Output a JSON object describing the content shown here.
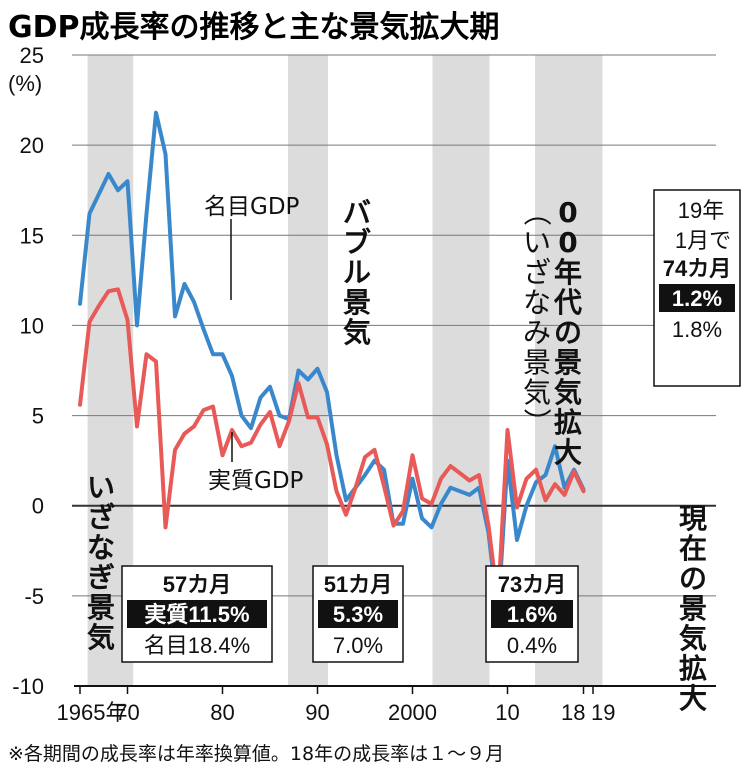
{
  "chart_data": {
    "type": "line",
    "title": "GDP成長率の推移と主な景気拡大期",
    "ylabel": "(%)",
    "ylim": [
      -10,
      25
    ],
    "yticks": [
      -10,
      -5,
      0,
      5,
      10,
      15,
      20,
      25
    ],
    "xlim": [
      1964.5,
      2020
    ],
    "xtick_labels": [
      {
        "x": 1965,
        "label": "1965年"
      },
      {
        "x": 1970,
        "label": "70"
      },
      {
        "x": 1980,
        "label": "80"
      },
      {
        "x": 1990,
        "label": "90"
      },
      {
        "x": 2000,
        "label": "2000"
      },
      {
        "x": 2010,
        "label": "10"
      },
      {
        "x": 2018,
        "label": "18"
      },
      {
        "x": 2019,
        "label": "19"
      }
    ],
    "grid": true,
    "x": [
      1965,
      1966,
      1967,
      1968,
      1969,
      1970,
      1971,
      1972,
      1973,
      1974,
      1975,
      1976,
      1977,
      1978,
      1979,
      1980,
      1981,
      1982,
      1983,
      1984,
      1985,
      1986,
      1987,
      1988,
      1989,
      1990,
      1991,
      1992,
      1993,
      1994,
      1995,
      1996,
      1997,
      1998,
      1999,
      2000,
      2001,
      2002,
      2003,
      2004,
      2005,
      2006,
      2007,
      2008,
      2009,
      2010,
      2011,
      2012,
      2013,
      2014,
      2015,
      2016,
      2017,
      2018
    ],
    "series": [
      {
        "name": "名目GDP",
        "color": "#3a88cc",
        "values": [
          11.2,
          16.2,
          17.3,
          18.4,
          17.5,
          18.0,
          10.0,
          16.2,
          21.8,
          19.5,
          10.5,
          12.3,
          11.3,
          9.8,
          8.4,
          8.4,
          7.2,
          5.0,
          4.3,
          6.0,
          6.6,
          5.0,
          4.8,
          7.5,
          7.0,
          7.6,
          6.3,
          2.8,
          0.3,
          1.0,
          1.7,
          2.5,
          2.0,
          -1.0,
          -1.0,
          1.5,
          -0.7,
          -1.2,
          0.1,
          1.0,
          0.8,
          0.6,
          1.0,
          -1.5,
          -6.1,
          2.5,
          -1.9,
          0.0,
          1.3,
          1.7,
          3.3,
          1.0,
          2.0,
          0.9
        ]
      },
      {
        "name": "実質GDP",
        "color": "#e85a58",
        "values": [
          5.6,
          10.2,
          11.1,
          11.9,
          12.0,
          10.3,
          4.4,
          8.4,
          8.0,
          -1.2,
          3.1,
          4.0,
          4.4,
          5.3,
          5.5,
          2.8,
          4.2,
          3.3,
          3.5,
          4.5,
          5.2,
          3.3,
          4.7,
          6.8,
          4.9,
          4.9,
          3.4,
          0.8,
          -0.5,
          1.0,
          2.7,
          3.1,
          1.1,
          -1.1,
          -0.3,
          2.8,
          0.4,
          0.1,
          1.5,
          2.2,
          1.8,
          1.4,
          1.7,
          -1.1,
          -5.4,
          4.2,
          -0.1,
          1.5,
          2.0,
          0.3,
          1.2,
          0.6,
          1.9,
          0.8
        ]
      }
    ],
    "shaded_periods": [
      {
        "from": 1965.8,
        "to": 1970.6,
        "label": "いざなぎ景気",
        "months": "57カ月",
        "real": "実質11.5%",
        "nominal": "名目18.4%"
      },
      {
        "from": 1986.9,
        "to": 1991.1,
        "label": "バブル景気",
        "months": "51カ月",
        "real": "5.3%",
        "nominal": "7.0%"
      },
      {
        "from": 2002.1,
        "to": 2008.1,
        "label": "00年代の景気拡大（いざなみ景気）",
        "months": "73カ月",
        "real": "1.6%",
        "nominal": "0.4%"
      },
      {
        "from": 2012.9,
        "to": 2020,
        "label": "現在の景気拡大",
        "months": "74カ月",
        "real": "1.2%",
        "nominal": "1.8%",
        "prefix": "19年 1月で"
      }
    ],
    "annotations": {
      "nominal_label": "名目GDP",
      "real_label": "実質GDP"
    }
  },
  "footnote": "※各期間の成長率は年率換算値。18年の成長率は１～９月"
}
